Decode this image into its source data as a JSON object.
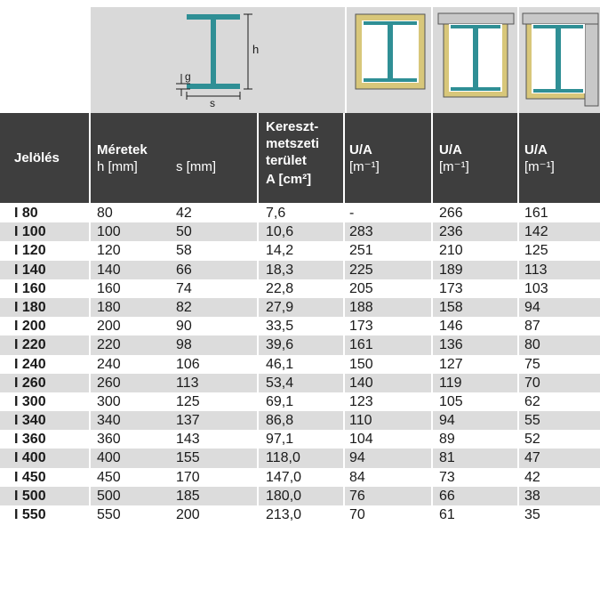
{
  "illustration": {
    "dim_h": "h",
    "dim_g": "g",
    "dim_s": "s"
  },
  "header": {
    "jeloles": "Jelölés",
    "meretek": "Méretek",
    "h_mm": "h [mm]",
    "s_mm": "s [mm]",
    "kereszt_1": "Kereszt-",
    "kereszt_2": "metszeti",
    "kereszt_3": "terület",
    "kereszt_4": "A [cm²]",
    "ua_1a": "U/A",
    "ua_1b": "[m⁻¹]",
    "ua_2a": "U/A",
    "ua_2b": "[m⁻¹]",
    "ua_3a": "U/A",
    "ua_3b": "[m⁻¹]"
  },
  "colors": {
    "header_bg": "#3e3e3e",
    "illustration_bg": "#d9d9d9",
    "stripe_bg": "#dcdcdc",
    "steel": "#2f8f95",
    "insulation": "#d8c77a",
    "wall": "#c8c8c8"
  },
  "rows": [
    [
      "I 80",
      "80",
      "42",
      "7,6",
      "-",
      "266",
      "161"
    ],
    [
      "I 100",
      "100",
      "50",
      "10,6",
      "283",
      "236",
      "142"
    ],
    [
      "I 120",
      "120",
      "58",
      "14,2",
      "251",
      "210",
      "125"
    ],
    [
      "I 140",
      "140",
      "66",
      "18,3",
      "225",
      "189",
      "113"
    ],
    [
      "I 160",
      "160",
      "74",
      "22,8",
      "205",
      "173",
      "103"
    ],
    [
      "I 180",
      "180",
      "82",
      "27,9",
      "188",
      "158",
      "94"
    ],
    [
      "I 200",
      "200",
      "90",
      "33,5",
      "173",
      "146",
      "87"
    ],
    [
      "I 220",
      "220",
      "98",
      "39,6",
      "161",
      "136",
      "80"
    ],
    [
      "I 240",
      "240",
      "106",
      "46,1",
      "150",
      "127",
      "75"
    ],
    [
      "I 260",
      "260",
      "113",
      "53,4",
      "140",
      "119",
      "70"
    ],
    [
      "I 300",
      "300",
      "125",
      "69,1",
      "123",
      "105",
      "62"
    ],
    [
      "I 340",
      "340",
      "137",
      "86,8",
      "110",
      "94",
      "55"
    ],
    [
      "I 360",
      "360",
      "143",
      "97,1",
      "104",
      "89",
      "52"
    ],
    [
      "I 400",
      "400",
      "155",
      "118,0",
      "94",
      "81",
      "47"
    ],
    [
      "I 450",
      "450",
      "170",
      "147,0",
      "84",
      "73",
      "42"
    ],
    [
      "I 500",
      "500",
      "185",
      "180,0",
      "76",
      "66",
      "38"
    ],
    [
      "I 550",
      "550",
      "200",
      "213,0",
      "70",
      "61",
      "35"
    ]
  ]
}
